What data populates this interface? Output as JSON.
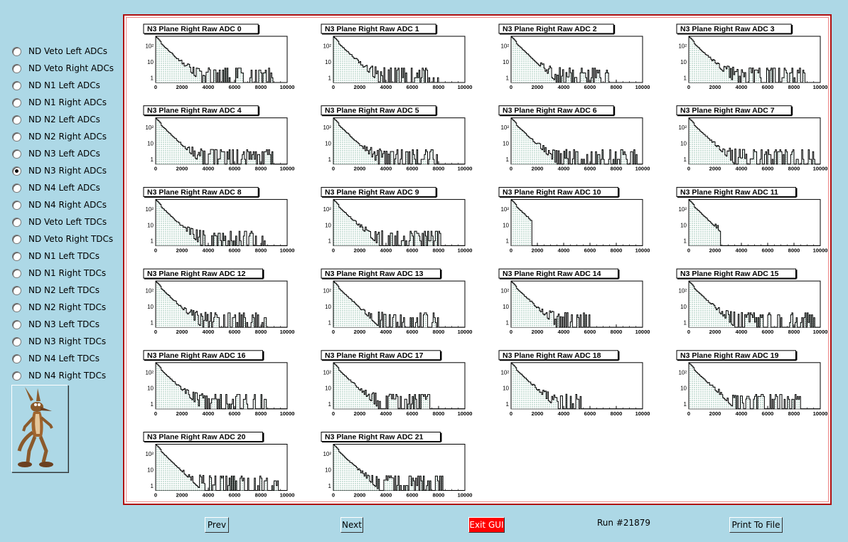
{
  "sidebar": {
    "selected": "ND N3 Right ADCs",
    "options": [
      "ND Veto Left ADCs",
      "ND Veto Right ADCs",
      "ND N1 Left ADCs",
      "ND N1 Right ADCs",
      "ND N2 Left ADCs",
      "ND N2 Right ADCs",
      "ND N3 Left ADCs",
      "ND N3 Right ADCs",
      "ND N4 Left ADCs",
      "ND N4 Right ADCs",
      "ND Veto Left TDCs",
      "ND Veto Right TDCs",
      "ND N1 Left TDCs",
      "ND N1 Right TDCs",
      "ND N2 Left TDCs",
      "ND N2 Right TDCs",
      "ND N3 Left TDCs",
      "ND N3 Right TDCs",
      "ND N4 Left TDCs",
      "ND N4 Right TDCs"
    ],
    "logo_icon": "cartoon-coyote-icon"
  },
  "buttons": {
    "prev": "Prev",
    "next": "Next",
    "exit": "Exit GUI",
    "print": "Print To File"
  },
  "run_label": "Run #21879",
  "colors": {
    "background": "#add8e6",
    "canvas_border": "#b01010",
    "exit_button": "#ff0000",
    "fill_hatch": "#7fb5a0"
  },
  "chart_data": {
    "type": "histogram-grid",
    "y_scale": "log",
    "x_ticks": [
      "0",
      "2000",
      "4000",
      "6000",
      "8000",
      "10000"
    ],
    "y_ticks": [
      "1",
      "10",
      "10²"
    ],
    "xlim": [
      0,
      10000
    ],
    "panels": [
      {
        "title": "N3 Plane Right Raw ADC 0",
        "extent": 9000
      },
      {
        "title": "N3 Plane Right Raw ADC 1",
        "extent": 8200
      },
      {
        "title": "N3 Plane Right Raw ADC 2",
        "extent": 7500
      },
      {
        "title": "N3 Plane Right Raw ADC 3",
        "extent": 8800
      },
      {
        "title": "N3 Plane Right Raw ADC 4",
        "extent": 9000
      },
      {
        "title": "N3 Plane Right Raw ADC 5",
        "extent": 8300
      },
      {
        "title": "N3 Plane Right Raw ADC 6",
        "extent": 9600
      },
      {
        "title": "N3 Plane Right Raw ADC 7",
        "extent": 9600
      },
      {
        "title": "N3 Plane Right Raw ADC 8",
        "extent": 8300
      },
      {
        "title": "N3 Plane Right Raw ADC 9",
        "extent": 8200
      },
      {
        "title": "N3 Plane Right Raw ADC 10",
        "extent": 1600
      },
      {
        "title": "N3 Plane Right Raw ADC 11",
        "extent": 2400
      },
      {
        "title": "N3 Plane Right Raw ADC 12",
        "extent": 8800
      },
      {
        "title": "N3 Plane Right Raw ADC 13",
        "extent": 8000
      },
      {
        "title": "N3 Plane Right Raw ADC 14",
        "extent": 6000
      },
      {
        "title": "N3 Plane Right Raw ADC 15",
        "extent": 9600
      },
      {
        "title": "N3 Plane Right Raw ADC 16",
        "extent": 8400
      },
      {
        "title": "N3 Plane Right Raw ADC 17",
        "extent": 7500
      },
      {
        "title": "N3 Plane Right Raw ADC 18",
        "extent": 5300
      },
      {
        "title": "N3 Plane Right Raw ADC 19",
        "extent": 8500
      },
      {
        "title": "N3 Plane Right Raw ADC 20",
        "extent": 9300
      },
      {
        "title": "N3 Plane Right Raw ADC 21",
        "extent": 8300
      }
    ]
  }
}
